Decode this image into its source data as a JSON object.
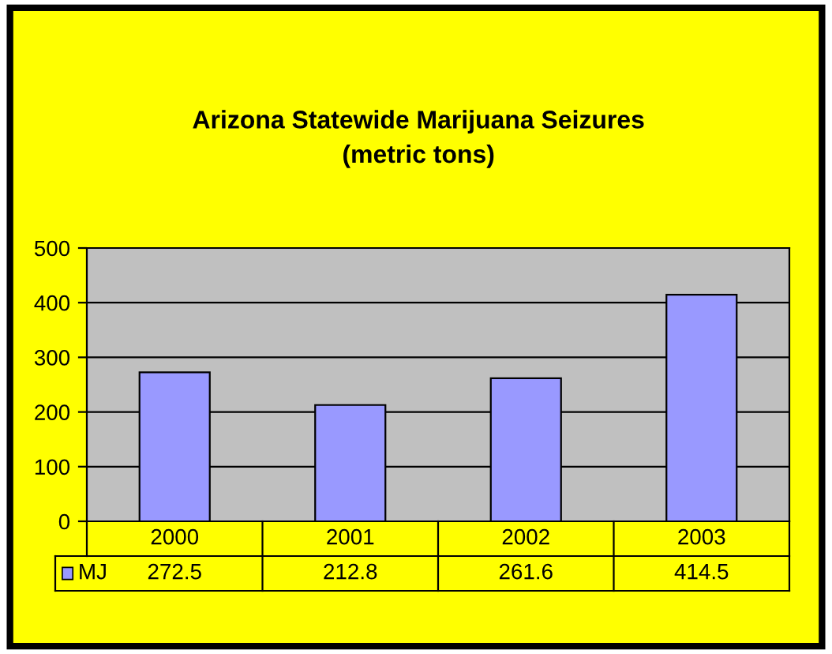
{
  "chart_data": {
    "type": "bar",
    "title": "Arizona Statewide Marijuana Seizures\n(metric tons)",
    "categories": [
      "2000",
      "2001",
      "2002",
      "2003"
    ],
    "series": [
      {
        "name": "MJ",
        "color": "#9999ff",
        "values": [
          272.5,
          212.8,
          261.6,
          414.5
        ]
      }
    ],
    "ylim": [
      0,
      500
    ],
    "yticks": [
      0,
      100,
      200,
      300,
      400,
      500
    ],
    "grid": "y",
    "data_labels": true
  }
}
